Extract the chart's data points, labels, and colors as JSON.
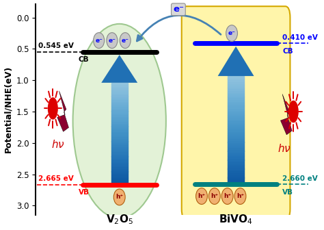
{
  "ylabel": "Potential/NHE(eV)",
  "ylim": [
    3.15,
    -0.22
  ],
  "yticks": [
    0.0,
    0.5,
    1.0,
    1.5,
    2.0,
    2.5,
    3.0
  ],
  "v2o5_cb": 0.545,
  "v2o5_vb": 2.665,
  "bivo4_cb": 0.41,
  "bivo4_vb": 2.66,
  "bg_color": "#ffffff",
  "v2o5_fill": "#dff0d0",
  "v2o5_edge": "#90c080",
  "bivo4_fill": "#fff5aa",
  "bivo4_edge": "#d4a800",
  "arrow_blue_dark": "#1a5fa8",
  "arrow_blue_light": "#a8c8e8",
  "sun_color": "#dd0000",
  "bolt_color": "#8b0030",
  "hv_color": "#cc0000",
  "e_bubble_fill": "#c8c8c8",
  "e_bubble_edge": "#888888",
  "h_bubble_fill": "#f0b070",
  "h_bubble_edge": "#b06010"
}
